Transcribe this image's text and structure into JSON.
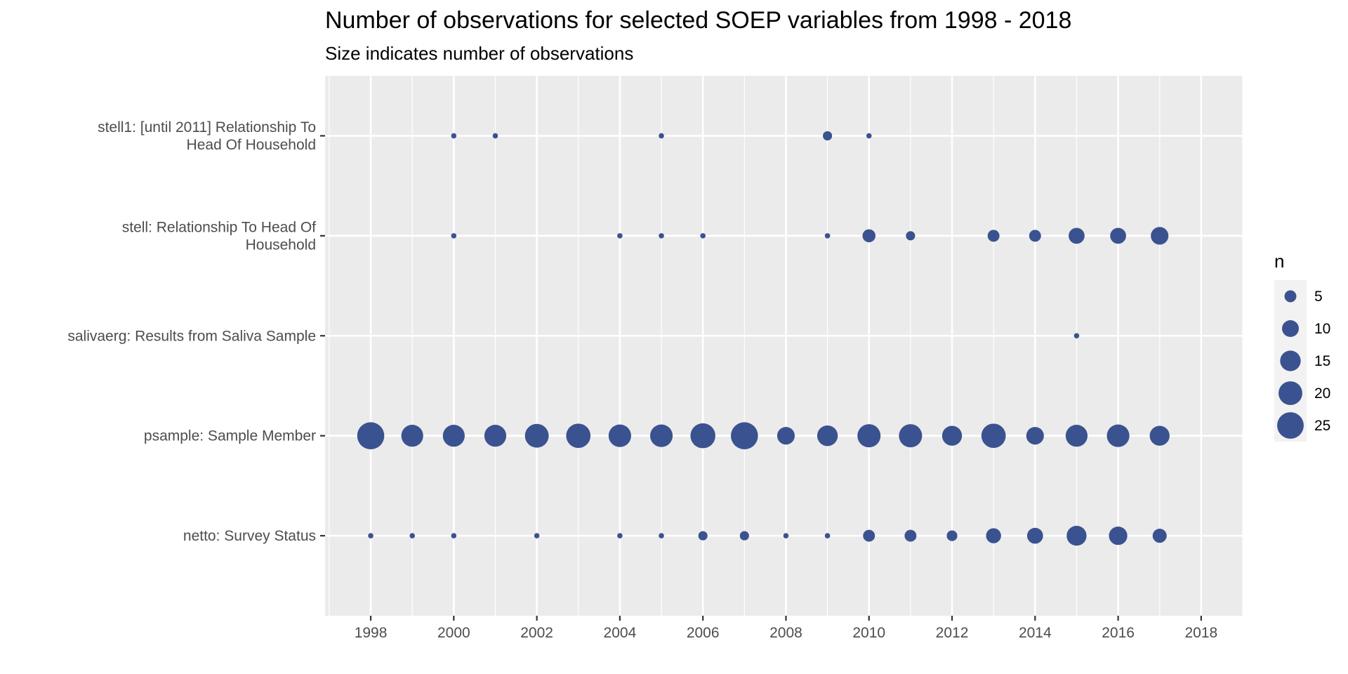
{
  "chart_data": {
    "type": "scatter",
    "title": "Number of observations for selected SOEP variables from 1998 - 2018",
    "subtitle": "Size indicates number of observations",
    "x_ticks": [
      1998,
      2000,
      2002,
      2004,
      2006,
      2008,
      2010,
      2012,
      2014,
      2016,
      2018
    ],
    "xlim": [
      1996.9,
      2019
    ],
    "categories": [
      {
        "key": "stell1",
        "label_lines": [
          "stell1: [until 2011] Relationship To",
          "Head Of Household"
        ]
      },
      {
        "key": "stell",
        "label_lines": [
          "stell: Relationship To Head Of",
          "Household"
        ]
      },
      {
        "key": "salivaerg",
        "label_lines": [
          "salivaerg: Results from Saliva Sample"
        ]
      },
      {
        "key": "psample",
        "label_lines": [
          "psample: Sample Member"
        ]
      },
      {
        "key": "netto",
        "label_lines": [
          "netto: Survey Status"
        ]
      }
    ],
    "series": [
      {
        "category": "stell1",
        "points": [
          {
            "x": 2000,
            "n": 1
          },
          {
            "x": 2001,
            "n": 1
          },
          {
            "x": 2005,
            "n": 1
          },
          {
            "x": 2009,
            "n": 3
          },
          {
            "x": 2010,
            "n": 1
          }
        ]
      },
      {
        "category": "stell",
        "points": [
          {
            "x": 2000,
            "n": 1
          },
          {
            "x": 2004,
            "n": 1
          },
          {
            "x": 2005,
            "n": 1
          },
          {
            "x": 2006,
            "n": 1
          },
          {
            "x": 2009,
            "n": 1
          },
          {
            "x": 2010,
            "n": 6
          },
          {
            "x": 2011,
            "n": 3
          },
          {
            "x": 2013,
            "n": 5
          },
          {
            "x": 2014,
            "n": 5
          },
          {
            "x": 2015,
            "n": 9
          },
          {
            "x": 2016,
            "n": 9
          },
          {
            "x": 2017,
            "n": 11
          }
        ]
      },
      {
        "category": "salivaerg",
        "points": [
          {
            "x": 2015,
            "n": 1
          }
        ]
      },
      {
        "category": "psample",
        "points": [
          {
            "x": 1998,
            "n": 26
          },
          {
            "x": 1999,
            "n": 17
          },
          {
            "x": 2000,
            "n": 17
          },
          {
            "x": 2001,
            "n": 17
          },
          {
            "x": 2002,
            "n": 20
          },
          {
            "x": 2003,
            "n": 21
          },
          {
            "x": 2004,
            "n": 18
          },
          {
            "x": 2005,
            "n": 18
          },
          {
            "x": 2006,
            "n": 22
          },
          {
            "x": 2007,
            "n": 26
          },
          {
            "x": 2008,
            "n": 11
          },
          {
            "x": 2009,
            "n": 15
          },
          {
            "x": 2010,
            "n": 19
          },
          {
            "x": 2011,
            "n": 19
          },
          {
            "x": 2012,
            "n": 14
          },
          {
            "x": 2013,
            "n": 21
          },
          {
            "x": 2014,
            "n": 11
          },
          {
            "x": 2015,
            "n": 17
          },
          {
            "x": 2016,
            "n": 18
          },
          {
            "x": 2017,
            "n": 14
          }
        ]
      },
      {
        "category": "netto",
        "points": [
          {
            "x": 1998,
            "n": 1
          },
          {
            "x": 1999,
            "n": 1
          },
          {
            "x": 2000,
            "n": 1
          },
          {
            "x": 2002,
            "n": 1
          },
          {
            "x": 2004,
            "n": 1
          },
          {
            "x": 2005,
            "n": 1
          },
          {
            "x": 2006,
            "n": 3
          },
          {
            "x": 2007,
            "n": 3
          },
          {
            "x": 2008,
            "n": 1
          },
          {
            "x": 2009,
            "n": 1
          },
          {
            "x": 2010,
            "n": 5
          },
          {
            "x": 2011,
            "n": 5
          },
          {
            "x": 2012,
            "n": 4
          },
          {
            "x": 2013,
            "n": 8
          },
          {
            "x": 2014,
            "n": 9
          },
          {
            "x": 2015,
            "n": 14
          },
          {
            "x": 2016,
            "n": 12
          },
          {
            "x": 2017,
            "n": 7
          }
        ]
      }
    ],
    "legend": {
      "title": "n",
      "position": "right",
      "values": [
        5,
        10,
        15,
        20,
        25
      ]
    },
    "grid": true,
    "colors": {
      "point": "#3b5290",
      "panel": "#ebebeb",
      "gridline": "#ffffff",
      "tick": "#333333",
      "tick_label": "#4d4d4d",
      "legend_key_bg": "#f2f2f2"
    }
  }
}
